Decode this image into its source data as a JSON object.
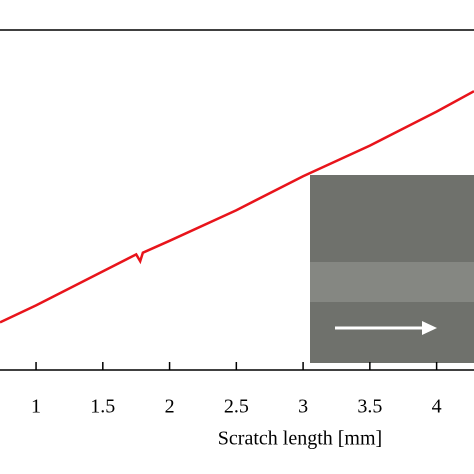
{
  "chart_data": {
    "type": "line",
    "xlabel": "Scratch length [mm]",
    "x": [
      0.73,
      1.0,
      1.5,
      1.75,
      1.78,
      1.8,
      2.0,
      2.5,
      3.0,
      3.5,
      4.0,
      4.28
    ],
    "series": [
      {
        "color": "#e8141b",
        "values": [
          0.14,
          0.19,
          0.29,
          0.34,
          0.32,
          0.345,
          0.38,
          0.47,
          0.57,
          0.66,
          0.76,
          0.82
        ]
      }
    ],
    "xlim": [
      0.73,
      4.28
    ],
    "ylim": [
      0,
      1
    ],
    "xticks": [
      1,
      1.5,
      2,
      2.5,
      3,
      3.5,
      4
    ]
  }
}
